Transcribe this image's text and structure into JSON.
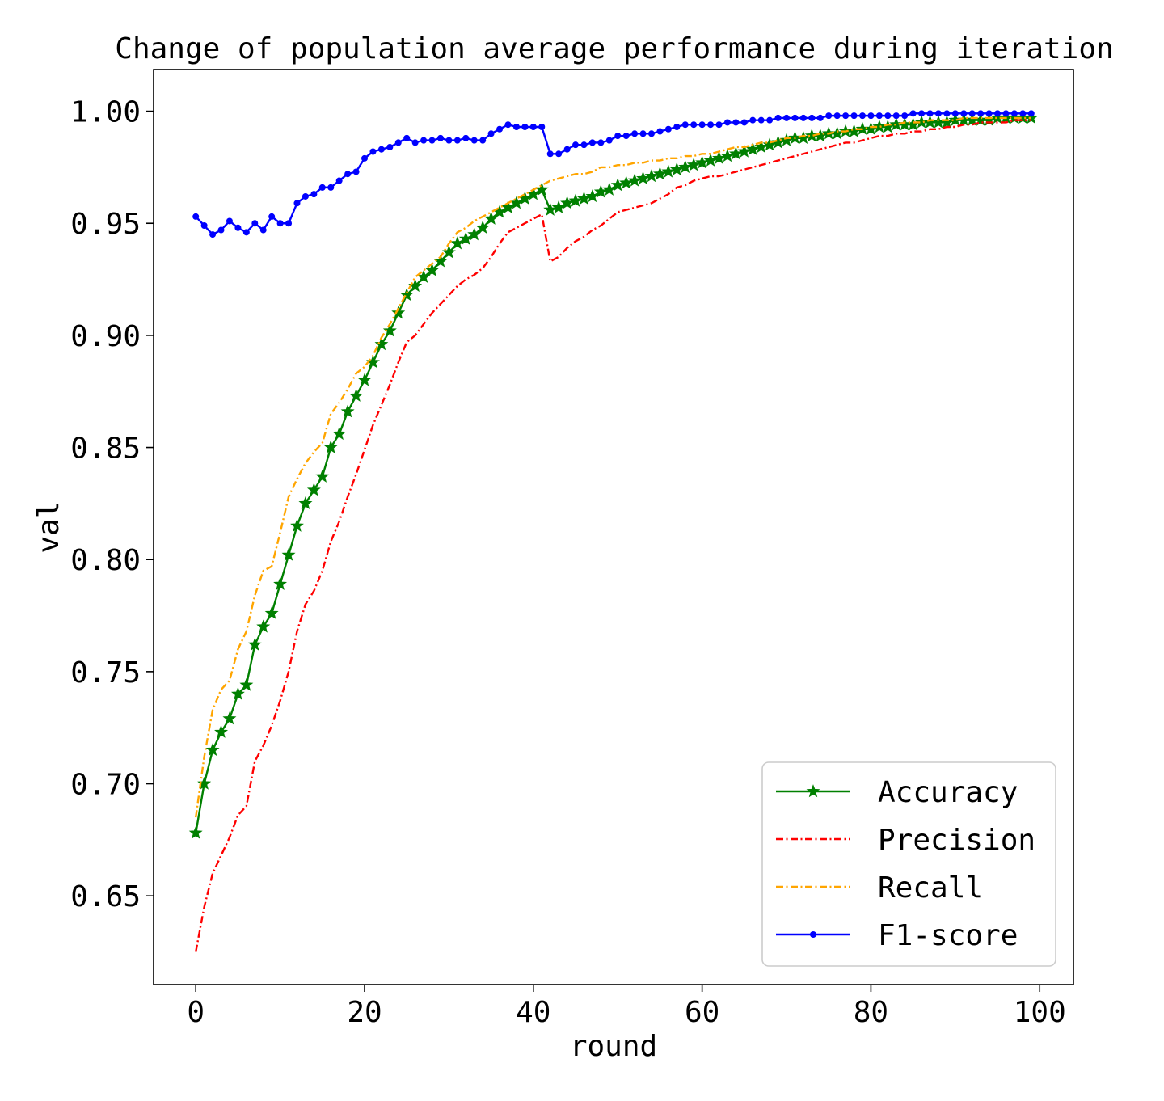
{
  "chart_data": {
    "type": "line",
    "title": "Change of population average performance during iteration",
    "xlabel": "round",
    "ylabel": "val",
    "xlim": [
      -5,
      104
    ],
    "ylim": [
      0.6104,
      1.0186
    ],
    "xticks": [
      0,
      20,
      40,
      60,
      80,
      100
    ],
    "xtick_labels": [
      "0",
      "20",
      "40",
      "60",
      "80",
      "100"
    ],
    "yticks": [
      0.65,
      0.7,
      0.75,
      0.8,
      0.85,
      0.9,
      0.95,
      1.0
    ],
    "ytick_labels": [
      "0.65",
      "0.70",
      "0.75",
      "0.80",
      "0.85",
      "0.90",
      "0.95",
      "1.00"
    ],
    "grid": false,
    "legend_position": "lower-right",
    "series": [
      {
        "name": "Accuracy",
        "color": "#008000",
        "dash": "solid",
        "marker": "star",
        "values": [
          0.678,
          0.7,
          0.715,
          0.723,
          0.729,
          0.74,
          0.744,
          0.762,
          0.77,
          0.776,
          0.789,
          0.802,
          0.815,
          0.825,
          0.831,
          0.837,
          0.85,
          0.856,
          0.866,
          0.873,
          0.88,
          0.888,
          0.896,
          0.902,
          0.91,
          0.918,
          0.922,
          0.926,
          0.929,
          0.933,
          0.937,
          0.941,
          0.943,
          0.945,
          0.948,
          0.952,
          0.955,
          0.957,
          0.959,
          0.961,
          0.963,
          0.965,
          0.956,
          0.957,
          0.959,
          0.96,
          0.961,
          0.962,
          0.964,
          0.965,
          0.967,
          0.968,
          0.969,
          0.97,
          0.971,
          0.972,
          0.973,
          0.974,
          0.975,
          0.976,
          0.977,
          0.978,
          0.979,
          0.98,
          0.981,
          0.982,
          0.983,
          0.984,
          0.985,
          0.986,
          0.987,
          0.988,
          0.988,
          0.989,
          0.989,
          0.99,
          0.99,
          0.991,
          0.991,
          0.992,
          0.992,
          0.993,
          0.993,
          0.994,
          0.994,
          0.994,
          0.995,
          0.995,
          0.995,
          0.995,
          0.996,
          0.996,
          0.996,
          0.996,
          0.996,
          0.997,
          0.997,
          0.997,
          0.997,
          0.997
        ]
      },
      {
        "name": "Precision",
        "color": "#ff0000",
        "dash": "dashdot",
        "marker": "none",
        "values": [
          0.625,
          0.645,
          0.66,
          0.668,
          0.676,
          0.686,
          0.69,
          0.71,
          0.717,
          0.726,
          0.737,
          0.75,
          0.768,
          0.78,
          0.786,
          0.795,
          0.808,
          0.817,
          0.828,
          0.838,
          0.849,
          0.86,
          0.869,
          0.878,
          0.888,
          0.897,
          0.9,
          0.905,
          0.91,
          0.914,
          0.918,
          0.922,
          0.925,
          0.927,
          0.93,
          0.935,
          0.941,
          0.946,
          0.948,
          0.95,
          0.952,
          0.954,
          0.933,
          0.935,
          0.939,
          0.942,
          0.944,
          0.947,
          0.949,
          0.952,
          0.955,
          0.956,
          0.957,
          0.958,
          0.959,
          0.961,
          0.963,
          0.966,
          0.967,
          0.969,
          0.97,
          0.971,
          0.971,
          0.972,
          0.973,
          0.974,
          0.975,
          0.976,
          0.977,
          0.978,
          0.979,
          0.98,
          0.981,
          0.982,
          0.983,
          0.984,
          0.985,
          0.986,
          0.986,
          0.987,
          0.988,
          0.989,
          0.989,
          0.99,
          0.99,
          0.991,
          0.991,
          0.992,
          0.992,
          0.993,
          0.993,
          0.994,
          0.994,
          0.995,
          0.995,
          0.995,
          0.995,
          0.996,
          0.996,
          0.996
        ]
      },
      {
        "name": "Recall",
        "color": "#ffa500",
        "dash": "dashdot",
        "marker": "none",
        "values": [
          0.685,
          0.712,
          0.733,
          0.742,
          0.746,
          0.76,
          0.768,
          0.784,
          0.795,
          0.797,
          0.812,
          0.828,
          0.836,
          0.843,
          0.848,
          0.852,
          0.865,
          0.87,
          0.876,
          0.883,
          0.886,
          0.891,
          0.899,
          0.905,
          0.912,
          0.919,
          0.926,
          0.929,
          0.932,
          0.935,
          0.941,
          0.946,
          0.948,
          0.951,
          0.953,
          0.955,
          0.957,
          0.959,
          0.961,
          0.963,
          0.965,
          0.967,
          0.969,
          0.97,
          0.971,
          0.972,
          0.972,
          0.973,
          0.975,
          0.975,
          0.976,
          0.976,
          0.977,
          0.977,
          0.978,
          0.978,
          0.979,
          0.979,
          0.98,
          0.98,
          0.981,
          0.981,
          0.982,
          0.983,
          0.984,
          0.984,
          0.985,
          0.986,
          0.986,
          0.987,
          0.988,
          0.988,
          0.989,
          0.989,
          0.99,
          0.99,
          0.991,
          0.991,
          0.992,
          0.992,
          0.993,
          0.993,
          0.994,
          0.994,
          0.995,
          0.995,
          0.995,
          0.996,
          0.996,
          0.996,
          0.996,
          0.997,
          0.997,
          0.997,
          0.997,
          0.997,
          0.997,
          0.997,
          0.997,
          0.997
        ]
      },
      {
        "name": "F1-score",
        "color": "#0000ff",
        "dash": "solid",
        "marker": "dot",
        "values": [
          0.953,
          0.949,
          0.945,
          0.947,
          0.951,
          0.948,
          0.946,
          0.95,
          0.947,
          0.953,
          0.95,
          0.95,
          0.959,
          0.962,
          0.963,
          0.966,
          0.966,
          0.969,
          0.972,
          0.973,
          0.979,
          0.982,
          0.983,
          0.984,
          0.986,
          0.988,
          0.986,
          0.987,
          0.987,
          0.988,
          0.987,
          0.987,
          0.988,
          0.987,
          0.987,
          0.99,
          0.992,
          0.994,
          0.993,
          0.993,
          0.993,
          0.993,
          0.981,
          0.981,
          0.983,
          0.985,
          0.985,
          0.986,
          0.986,
          0.987,
          0.989,
          0.989,
          0.99,
          0.99,
          0.99,
          0.991,
          0.992,
          0.993,
          0.994,
          0.994,
          0.994,
          0.994,
          0.994,
          0.995,
          0.995,
          0.995,
          0.996,
          0.996,
          0.996,
          0.997,
          0.997,
          0.997,
          0.997,
          0.997,
          0.997,
          0.998,
          0.998,
          0.998,
          0.998,
          0.998,
          0.998,
          0.998,
          0.998,
          0.998,
          0.998,
          0.999,
          0.999,
          0.999,
          0.999,
          0.999,
          0.999,
          0.999,
          0.999,
          0.999,
          0.999,
          0.999,
          0.999,
          0.999,
          0.999,
          0.999
        ]
      }
    ]
  }
}
